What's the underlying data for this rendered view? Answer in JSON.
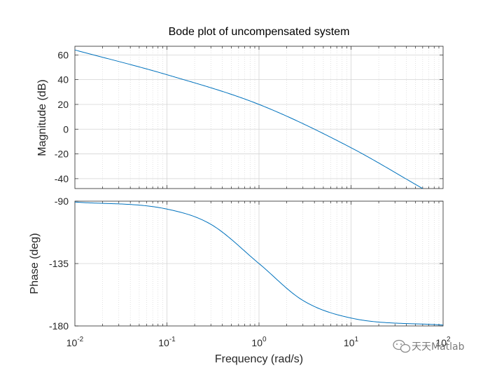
{
  "chart_data": {
    "type": "line",
    "title": "Bode plot of uncompensated system",
    "xlabel": "Frequency  (rad/s)",
    "xscale": "log",
    "xlim": [
      0.01,
      100
    ],
    "xtick_labels": [
      {
        "base": "10",
        "exp": "-2"
      },
      {
        "base": "10",
        "exp": "-1"
      },
      {
        "base": "10",
        "exp": "0"
      },
      {
        "base": "10",
        "exp": "1"
      },
      {
        "base": "10",
        "exp": "2"
      }
    ],
    "grid": true,
    "line_color": "#0072bd",
    "panels": [
      {
        "ylabel": "Magnitude (dB)",
        "ylim": [
          -48,
          67
        ],
        "yticks": [
          "60",
          "40",
          "20",
          "0",
          "-20",
          "-40"
        ],
        "ytick_values": [
          60,
          40,
          20,
          0,
          -20,
          -40
        ],
        "x": [
          0.01,
          0.1,
          1,
          10,
          60
        ],
        "y": [
          64,
          44,
          20,
          -15,
          -48
        ]
      },
      {
        "ylabel": "Phase (deg)",
        "ylim": [
          -180,
          -90
        ],
        "yticks": [
          "-90",
          "-135",
          "-180"
        ],
        "ytick_values": [
          -90,
          -135,
          -180
        ],
        "x": [
          0.01,
          0.1,
          0.3,
          1,
          3,
          10,
          100
        ],
        "y": [
          -90.6,
          -95.7,
          -106.7,
          -135,
          -161.6,
          -174.3,
          -179.4
        ]
      }
    ]
  },
  "watermark": {
    "text": "天天Matlab",
    "icon": "wechat-icon"
  }
}
